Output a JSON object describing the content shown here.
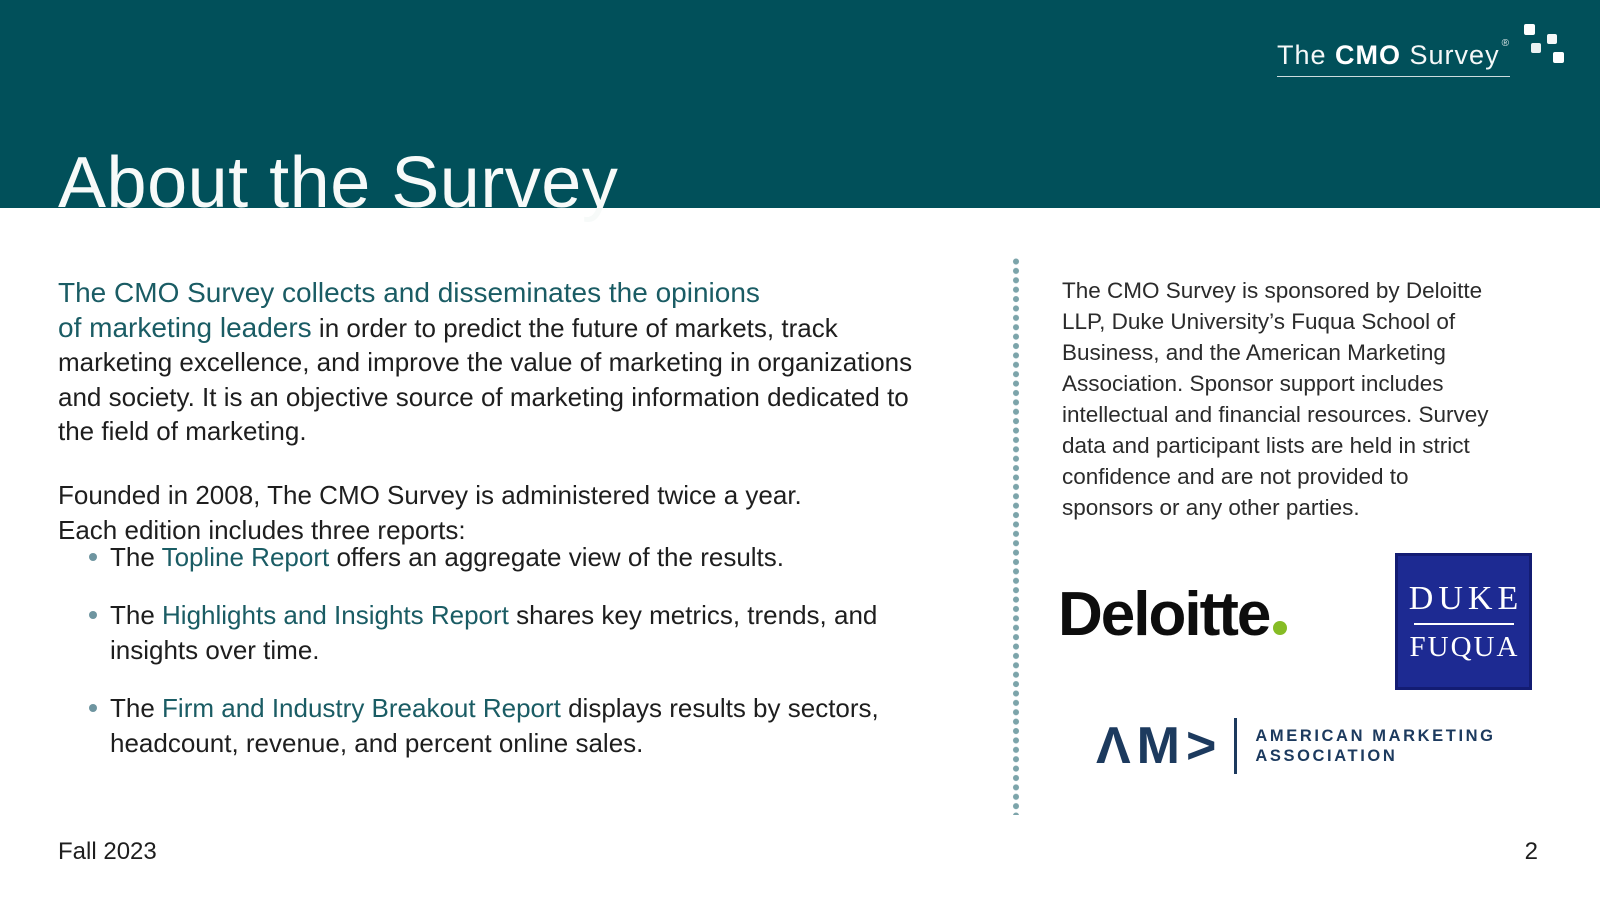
{
  "header": {
    "title": "About the Survey",
    "logo": {
      "word_the": "The ",
      "word_cmo": "CMO",
      "word_survey": " Survey",
      "registered_mark": "®"
    }
  },
  "main": {
    "intro": {
      "highlight_line1": "The CMO Survey collects and disseminates the opinions",
      "highlight_line2": "of marketing leaders",
      "rest": " in order to predict the future of markets, track marketing excellence, and improve the value of marketing in organizations and society. It is an objective source of marketing information dedicated to the field of marketing."
    },
    "founded": "Founded in 2008, The CMO Survey is administered twice a year. Each edition includes three reports:",
    "bullets": [
      {
        "prefix": "The ",
        "report": "Topline Report",
        "rest": " offers an aggregate view of the results."
      },
      {
        "prefix": "The ",
        "report": "Highlights and Insights Report",
        "rest": " shares key metrics, trends, and insights over time."
      },
      {
        "prefix": "The ",
        "report": "Firm and Industry Breakout Report",
        "rest": " displays results by sectors, headcount, revenue, and percent online sales."
      }
    ]
  },
  "sidebar": {
    "sponsor_text": "The CMO Survey is sponsored by Deloitte LLP, Duke University’s Fuqua School of Business, and the American Marketing Association. Sponsor support includes intellectual and financial resources. Survey data and participant lists are held in strict confidence and are not provided to sponsors or any other parties.",
    "deloitte_logo": {
      "wordmark": "Deloitte"
    },
    "duke_logo": {
      "line1": "DUKE",
      "line2": "FUQUA"
    },
    "ama_logo": {
      "symbol": "ΛM>",
      "line1": "AMERICAN MARKETING",
      "line2": "ASSOCIATION"
    }
  },
  "footer": {
    "edition": "Fall 2023",
    "page_number": "2"
  },
  "colors": {
    "header_teal": "#01505A",
    "accent_teal": "#1A5C64",
    "divider_dot": "#7CA4AA",
    "bullet_dot": "#6E95A0",
    "deloitte_green": "#86BC25",
    "duke_blue": "#1D2A92",
    "ama_navy": "#1C3A5E"
  }
}
